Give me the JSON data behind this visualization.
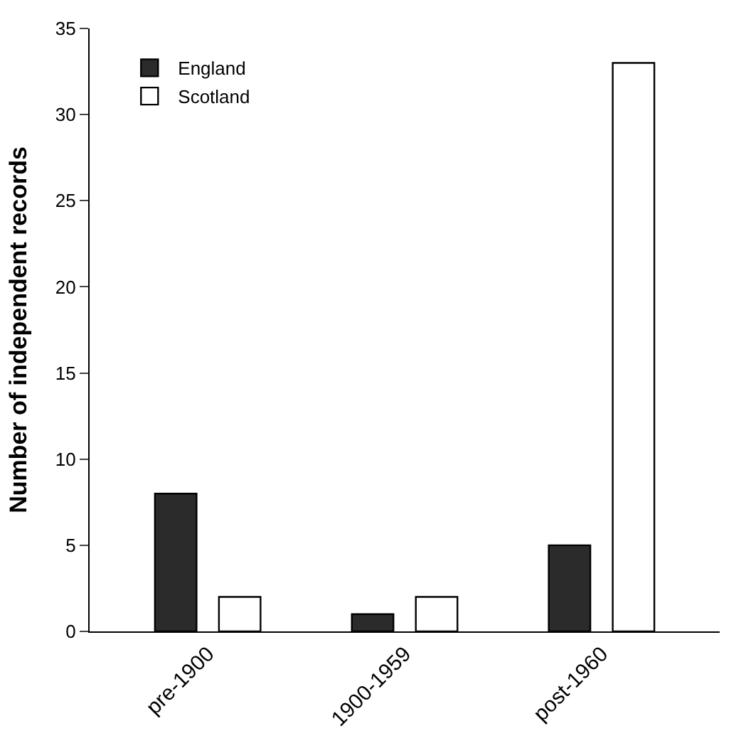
{
  "chart_data": {
    "type": "bar",
    "ylabel": "Number of independent records",
    "categories": [
      "pre-1900",
      "1900-1959",
      "post-1960"
    ],
    "series": [
      {
        "name": "England",
        "color": "#2b2b2b",
        "values": [
          8,
          1,
          5
        ]
      },
      {
        "name": "Scotland",
        "color": "#ffffff",
        "values": [
          2,
          2,
          33
        ]
      }
    ],
    "ylim": [
      0,
      35
    ],
    "yticks": [
      0,
      5,
      10,
      15,
      20,
      25,
      30,
      35
    ],
    "legend": "top left"
  }
}
